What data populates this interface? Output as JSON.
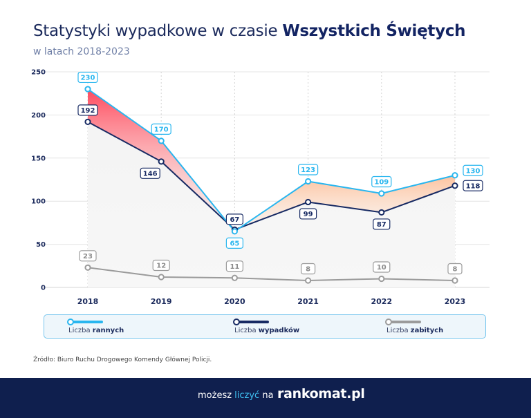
{
  "header": {
    "title_regular": "Statystyki wypadkowe w czasie ",
    "title_bold": "Wszystkich Świętych",
    "subtitle": "w latach 2018-2023"
  },
  "chart_data": {
    "type": "line",
    "title": "Statystyki wypadkowe w czasie Wszystkich Świętych",
    "subtitle": "w latach 2018-2023",
    "categories": [
      "2018",
      "2019",
      "2020",
      "2021",
      "2022",
      "2023"
    ],
    "y_ticks": [
      0,
      50,
      100,
      150,
      200,
      250
    ],
    "ylim": [
      0,
      250
    ],
    "grid": true,
    "legend_position": "bottom",
    "series": [
      {
        "name": "Liczba rannych",
        "values": [
          230,
          170,
          65,
          123,
          109,
          130
        ],
        "color": "#29b6ef"
      },
      {
        "name": "Liczba wypadków",
        "values": [
          192,
          146,
          67,
          99,
          87,
          118
        ],
        "color": "#172a63"
      },
      {
        "name": "Liczba zabitych",
        "values": [
          23,
          12,
          11,
          8,
          10,
          8
        ],
        "color": "#9b9b9b"
      }
    ]
  },
  "legend": {
    "items": [
      {
        "prefix": "Liczba ",
        "bold": "rannych",
        "color": "#29b6ef"
      },
      {
        "prefix": "Liczba ",
        "bold": "wypadków",
        "color": "#172a63"
      },
      {
        "prefix": "Liczba ",
        "bold": "zabitych",
        "color": "#9b9b9b"
      }
    ]
  },
  "source": "Źródło: Biuro Ruchu Drogowego Komendy Głównej Policji.",
  "footer": {
    "pre": "możesz ",
    "accent": "liczyć",
    "post": " na",
    "brand": "rankomat.pl"
  }
}
